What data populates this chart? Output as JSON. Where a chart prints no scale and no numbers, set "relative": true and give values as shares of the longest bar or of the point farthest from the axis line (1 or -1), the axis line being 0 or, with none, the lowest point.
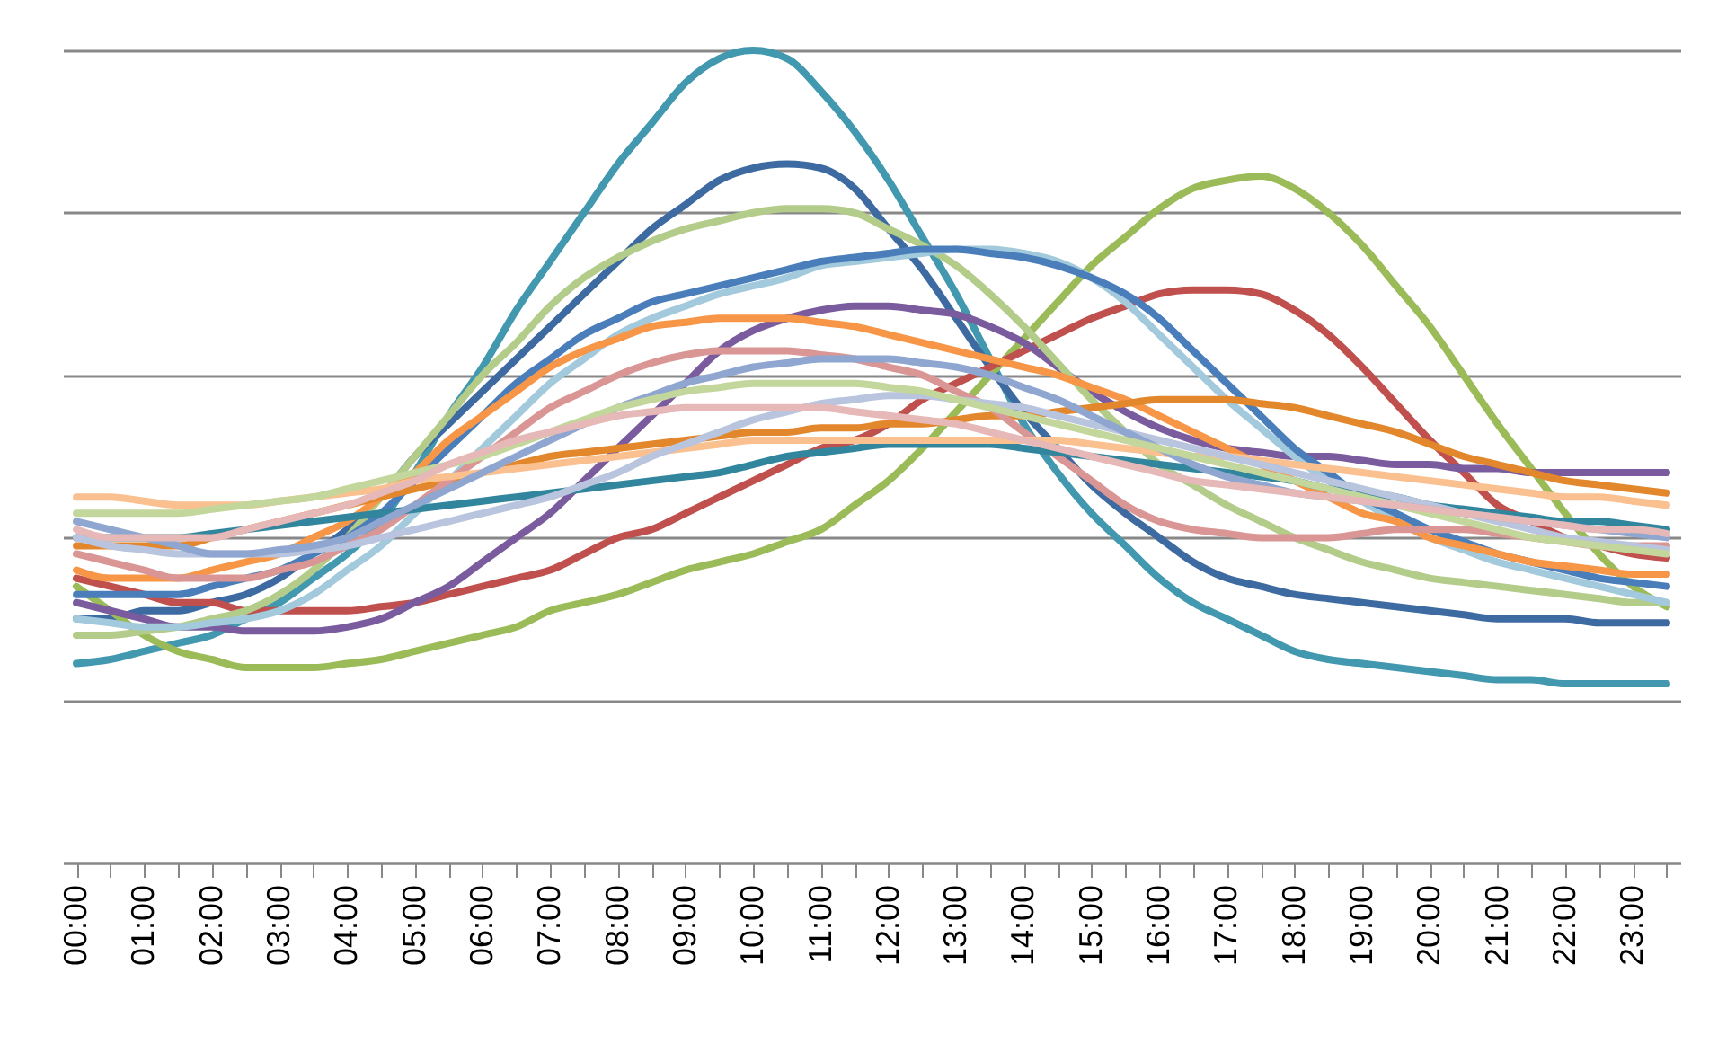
{
  "chart_data": {
    "type": "line",
    "relative": true,
    "grid": "y",
    "categories": [
      "00:00",
      null,
      "01:00",
      null,
      "02:00",
      null,
      "03:00",
      null,
      "04:00",
      null,
      "05:00",
      null,
      "06:00",
      null,
      "07:00",
      null,
      "08:00",
      null,
      "09:00",
      null,
      "10:00",
      null,
      "11:00",
      null,
      "12:00",
      null,
      "13:00",
      null,
      "14:00",
      null,
      "15:00",
      null,
      "16:00",
      null,
      "17:00",
      null,
      "18:00",
      null,
      "19:00",
      null,
      "20:00",
      null,
      "21:00",
      null,
      "22:00",
      null,
      "23:00",
      null
    ],
    "series": [
      {
        "color": "#4198af",
        "values": [
          0.245,
          0.25,
          0.26,
          0.27,
          0.28,
          0.3,
          0.32,
          0.35,
          0.38,
          0.42,
          0.48,
          0.55,
          0.61,
          0.68,
          0.74,
          0.8,
          0.86,
          0.91,
          0.96,
          0.99,
          1.0,
          0.99,
          0.95,
          0.9,
          0.84,
          0.77,
          0.7,
          0.62,
          0.54,
          0.48,
          0.43,
          0.39,
          0.35,
          0.32,
          0.3,
          0.28,
          0.26,
          0.25,
          0.245,
          0.24,
          0.235,
          0.23,
          0.225,
          0.225,
          0.22,
          0.22,
          0.22,
          0.22
        ]
      },
      {
        "color": "#3d6aa0",
        "values": [
          0.3,
          0.3,
          0.31,
          0.31,
          0.32,
          0.33,
          0.35,
          0.38,
          0.41,
          0.45,
          0.5,
          0.54,
          0.58,
          0.62,
          0.66,
          0.7,
          0.74,
          0.78,
          0.81,
          0.84,
          0.855,
          0.86,
          0.855,
          0.83,
          0.78,
          0.73,
          0.67,
          0.61,
          0.555,
          0.51,
          0.465,
          0.43,
          0.4,
          0.37,
          0.35,
          0.34,
          0.33,
          0.325,
          0.32,
          0.315,
          0.31,
          0.305,
          0.3,
          0.3,
          0.3,
          0.295,
          0.295,
          0.295
        ]
      },
      {
        "color": "#9bbb59",
        "values": [
          0.34,
          0.31,
          0.28,
          0.26,
          0.25,
          0.24,
          0.24,
          0.24,
          0.245,
          0.25,
          0.26,
          0.27,
          0.28,
          0.29,
          0.31,
          0.32,
          0.33,
          0.345,
          0.36,
          0.37,
          0.38,
          0.395,
          0.41,
          0.44,
          0.47,
          0.51,
          0.555,
          0.6,
          0.645,
          0.69,
          0.735,
          0.77,
          0.805,
          0.83,
          0.84,
          0.845,
          0.83,
          0.8,
          0.76,
          0.71,
          0.66,
          0.6,
          0.54,
          0.485,
          0.43,
          0.38,
          0.34,
          0.315
        ]
      },
      {
        "color": "#c0504d",
        "values": [
          0.35,
          0.34,
          0.33,
          0.32,
          0.32,
          0.31,
          0.31,
          0.31,
          0.31,
          0.315,
          0.32,
          0.33,
          0.34,
          0.35,
          0.36,
          0.38,
          0.4,
          0.41,
          0.43,
          0.45,
          0.47,
          0.49,
          0.51,
          0.52,
          0.54,
          0.57,
          0.59,
          0.61,
          0.63,
          0.65,
          0.67,
          0.685,
          0.7,
          0.705,
          0.705,
          0.7,
          0.68,
          0.65,
          0.61,
          0.565,
          0.52,
          0.48,
          0.44,
          0.42,
          0.4,
          0.39,
          0.38,
          0.375
        ]
      },
      {
        "color": "#7a5c9e",
        "values": [
          0.32,
          0.31,
          0.3,
          0.29,
          0.29,
          0.285,
          0.285,
          0.285,
          0.29,
          0.3,
          0.32,
          0.34,
          0.37,
          0.4,
          0.43,
          0.47,
          0.51,
          0.55,
          0.59,
          0.63,
          0.655,
          0.67,
          0.68,
          0.685,
          0.685,
          0.68,
          0.675,
          0.66,
          0.64,
          0.61,
          0.58,
          0.555,
          0.535,
          0.52,
          0.51,
          0.505,
          0.5,
          0.5,
          0.495,
          0.49,
          0.49,
          0.485,
          0.485,
          0.48,
          0.48,
          0.48,
          0.48,
          0.48
        ]
      },
      {
        "color": "#b3cc8a",
        "values": [
          0.28,
          0.28,
          0.285,
          0.29,
          0.3,
          0.31,
          0.33,
          0.36,
          0.4,
          0.45,
          0.5,
          0.55,
          0.6,
          0.64,
          0.685,
          0.72,
          0.745,
          0.765,
          0.78,
          0.79,
          0.8,
          0.805,
          0.805,
          0.8,
          0.78,
          0.76,
          0.735,
          0.7,
          0.66,
          0.615,
          0.57,
          0.53,
          0.49,
          0.465,
          0.44,
          0.42,
          0.4,
          0.385,
          0.37,
          0.36,
          0.35,
          0.345,
          0.34,
          0.335,
          0.33,
          0.325,
          0.32,
          0.32
        ]
      },
      {
        "color": "#a2c9dc",
        "values": [
          0.3,
          0.295,
          0.29,
          0.29,
          0.295,
          0.3,
          0.31,
          0.33,
          0.36,
          0.39,
          0.43,
          0.47,
          0.51,
          0.55,
          0.59,
          0.62,
          0.65,
          0.67,
          0.685,
          0.7,
          0.71,
          0.72,
          0.735,
          0.74,
          0.745,
          0.75,
          0.755,
          0.755,
          0.75,
          0.74,
          0.72,
          0.69,
          0.65,
          0.61,
          0.57,
          0.535,
          0.5,
          0.47,
          0.445,
          0.42,
          0.4,
          0.385,
          0.37,
          0.36,
          0.35,
          0.34,
          0.33,
          0.32
        ]
      },
      {
        "color": "#4a7ebb",
        "values": [
          0.33,
          0.33,
          0.33,
          0.33,
          0.34,
          0.35,
          0.36,
          0.38,
          0.4,
          0.43,
          0.47,
          0.51,
          0.55,
          0.59,
          0.62,
          0.65,
          0.67,
          0.69,
          0.7,
          0.71,
          0.72,
          0.73,
          0.74,
          0.745,
          0.75,
          0.755,
          0.755,
          0.75,
          0.745,
          0.735,
          0.72,
          0.7,
          0.67,
          0.63,
          0.59,
          0.55,
          0.51,
          0.48,
          0.45,
          0.43,
          0.41,
          0.395,
          0.38,
          0.37,
          0.36,
          0.35,
          0.345,
          0.34
        ]
      },
      {
        "color": "#f79646",
        "values": [
          0.36,
          0.35,
          0.35,
          0.35,
          0.36,
          0.37,
          0.38,
          0.4,
          0.42,
          0.45,
          0.48,
          0.52,
          0.55,
          0.58,
          0.61,
          0.63,
          0.645,
          0.66,
          0.665,
          0.67,
          0.67,
          0.67,
          0.665,
          0.66,
          0.65,
          0.64,
          0.63,
          0.62,
          0.61,
          0.6,
          0.585,
          0.57,
          0.55,
          0.53,
          0.51,
          0.49,
          0.47,
          0.45,
          0.43,
          0.42,
          0.4,
          0.39,
          0.38,
          0.37,
          0.365,
          0.36,
          0.355,
          0.355
        ]
      },
      {
        "color": "#e3872d",
        "values": [
          0.39,
          0.39,
          0.39,
          0.39,
          0.4,
          0.41,
          0.42,
          0.43,
          0.44,
          0.45,
          0.46,
          0.47,
          0.48,
          0.49,
          0.5,
          0.505,
          0.51,
          0.515,
          0.52,
          0.525,
          0.53,
          0.53,
          0.535,
          0.535,
          0.54,
          0.54,
          0.545,
          0.55,
          0.55,
          0.555,
          0.56,
          0.565,
          0.57,
          0.57,
          0.57,
          0.565,
          0.56,
          0.55,
          0.54,
          0.53,
          0.515,
          0.5,
          0.49,
          0.48,
          0.47,
          0.465,
          0.46,
          0.455
        ]
      },
      {
        "color": "#d99694",
        "values": [
          0.38,
          0.37,
          0.36,
          0.35,
          0.35,
          0.35,
          0.36,
          0.37,
          0.39,
          0.41,
          0.44,
          0.47,
          0.5,
          0.53,
          0.56,
          0.58,
          0.6,
          0.615,
          0.625,
          0.63,
          0.63,
          0.63,
          0.625,
          0.62,
          0.61,
          0.6,
          0.58,
          0.56,
          0.53,
          0.5,
          0.47,
          0.44,
          0.42,
          0.41,
          0.405,
          0.4,
          0.4,
          0.4,
          0.405,
          0.41,
          0.41,
          0.41,
          0.405,
          0.4,
          0.395,
          0.39,
          0.39,
          0.39
        ]
      },
      {
        "color": "#31859c",
        "values": [
          0.4,
          0.4,
          0.4,
          0.4,
          0.405,
          0.41,
          0.415,
          0.42,
          0.425,
          0.43,
          0.435,
          0.44,
          0.445,
          0.45,
          0.455,
          0.46,
          0.465,
          0.47,
          0.475,
          0.48,
          0.49,
          0.5,
          0.505,
          0.51,
          0.515,
          0.515,
          0.515,
          0.515,
          0.51,
          0.505,
          0.5,
          0.495,
          0.49,
          0.485,
          0.48,
          0.475,
          0.47,
          0.46,
          0.455,
          0.45,
          0.44,
          0.435,
          0.43,
          0.425,
          0.42,
          0.42,
          0.415,
          0.41
        ]
      },
      {
        "color": "#fac090",
        "values": [
          0.45,
          0.45,
          0.445,
          0.44,
          0.44,
          0.44,
          0.445,
          0.45,
          0.455,
          0.46,
          0.47,
          0.475,
          0.48,
          0.485,
          0.49,
          0.495,
          0.5,
          0.505,
          0.51,
          0.515,
          0.52,
          0.52,
          0.52,
          0.52,
          0.52,
          0.52,
          0.52,
          0.52,
          0.52,
          0.52,
          0.515,
          0.51,
          0.505,
          0.5,
          0.5,
          0.495,
          0.49,
          0.485,
          0.48,
          0.475,
          0.47,
          0.465,
          0.46,
          0.455,
          0.45,
          0.45,
          0.445,
          0.44
        ]
      },
      {
        "color": "#b9c4de",
        "values": [
          0.4,
          0.39,
          0.385,
          0.38,
          0.38,
          0.38,
          0.38,
          0.385,
          0.39,
          0.4,
          0.41,
          0.42,
          0.43,
          0.44,
          0.45,
          0.465,
          0.48,
          0.5,
          0.515,
          0.53,
          0.545,
          0.555,
          0.565,
          0.57,
          0.575,
          0.575,
          0.57,
          0.565,
          0.56,
          0.55,
          0.54,
          0.53,
          0.52,
          0.51,
          0.5,
          0.49,
          0.48,
          0.47,
          0.46,
          0.45,
          0.44,
          0.43,
          0.42,
          0.41,
          0.4,
          0.395,
          0.39,
          0.385
        ]
      },
      {
        "color": "#8fa7d0",
        "values": [
          0.42,
          0.41,
          0.4,
          0.39,
          0.38,
          0.38,
          0.385,
          0.39,
          0.4,
          0.42,
          0.44,
          0.46,
          0.48,
          0.5,
          0.52,
          0.54,
          0.56,
          0.575,
          0.59,
          0.6,
          0.61,
          0.615,
          0.62,
          0.62,
          0.62,
          0.615,
          0.61,
          0.6,
          0.585,
          0.57,
          0.55,
          0.53,
          0.51,
          0.49,
          0.475,
          0.465,
          0.455,
          0.45,
          0.445,
          0.44,
          0.435,
          0.43,
          0.425,
          0.42,
          0.415,
          0.41,
          0.405,
          0.4
        ]
      },
      {
        "color": "#c3d69b",
        "values": [
          0.43,
          0.43,
          0.43,
          0.43,
          0.435,
          0.44,
          0.445,
          0.45,
          0.46,
          0.47,
          0.48,
          0.49,
          0.5,
          0.515,
          0.53,
          0.545,
          0.56,
          0.57,
          0.58,
          0.585,
          0.59,
          0.59,
          0.59,
          0.59,
          0.585,
          0.58,
          0.57,
          0.56,
          0.55,
          0.54,
          0.53,
          0.52,
          0.51,
          0.5,
          0.49,
          0.48,
          0.47,
          0.46,
          0.45,
          0.44,
          0.43,
          0.42,
          0.41,
          0.4,
          0.395,
          0.39,
          0.385,
          0.38
        ]
      },
      {
        "color": "#e6b9b8",
        "values": [
          0.41,
          0.4,
          0.4,
          0.4,
          0.4,
          0.41,
          0.42,
          0.43,
          0.44,
          0.455,
          0.47,
          0.49,
          0.505,
          0.52,
          0.53,
          0.54,
          0.55,
          0.555,
          0.56,
          0.56,
          0.56,
          0.56,
          0.56,
          0.555,
          0.55,
          0.545,
          0.54,
          0.53,
          0.52,
          0.51,
          0.5,
          0.49,
          0.48,
          0.47,
          0.465,
          0.46,
          0.455,
          0.45,
          0.445,
          0.44,
          0.435,
          0.43,
          0.425,
          0.42,
          0.415,
          0.41,
          0.41,
          0.405
        ]
      }
    ]
  }
}
